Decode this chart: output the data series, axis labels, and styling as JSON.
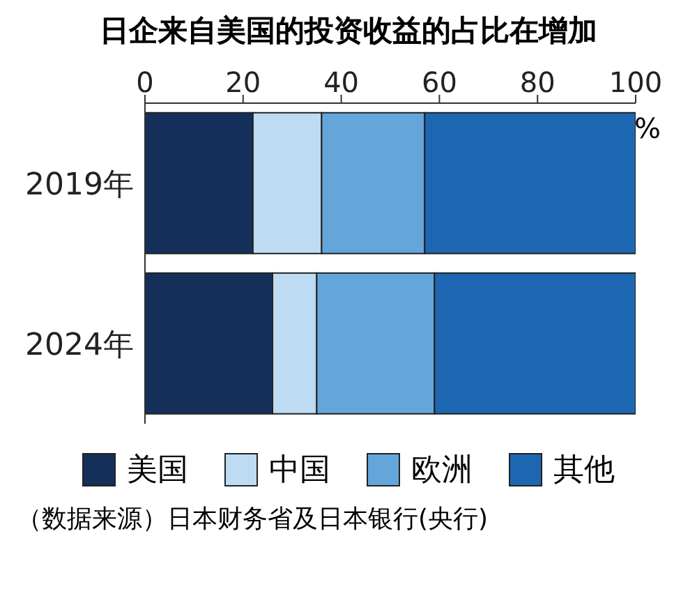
{
  "chart_data": {
    "type": "bar",
    "orientation": "horizontal",
    "stacked": true,
    "title": "日企来自美国的投资收益的占比在增加",
    "xlabel": "%",
    "categories": [
      "2019年",
      "2024年"
    ],
    "series": [
      {
        "name": "美国",
        "color": "#14305a",
        "values": [
          22,
          26
        ]
      },
      {
        "name": "中国",
        "color": "#bddcf3",
        "values": [
          14,
          9
        ]
      },
      {
        "name": "欧洲",
        "color": "#64a6da",
        "values": [
          21,
          24
        ]
      },
      {
        "name": "其他",
        "color": "#1d66b2",
        "values": [
          43,
          41
        ]
      }
    ],
    "xlim": [
      0,
      100
    ],
    "xticks": [
      0,
      20,
      40,
      60,
      80,
      100
    ],
    "legend": "bottom",
    "annotations": [
      "（数据来源）日本财务省及日本银行(央行)"
    ]
  }
}
